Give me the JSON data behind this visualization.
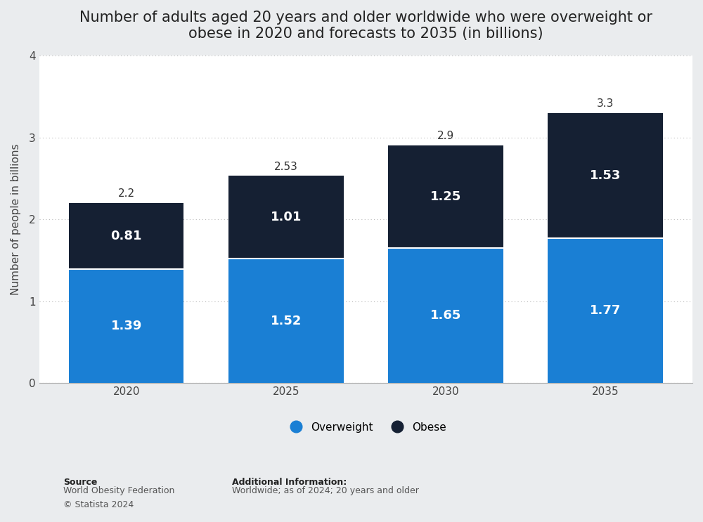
{
  "title": "Number of adults aged 20 years and older worldwide who were overweight or\nobese in 2020 and forecasts to 2035 (in billions)",
  "years": [
    "2020",
    "2025",
    "2030",
    "2035"
  ],
  "overweight": [
    1.39,
    1.52,
    1.65,
    1.77
  ],
  "obese": [
    0.81,
    1.01,
    1.25,
    1.53
  ],
  "totals": [
    2.2,
    2.53,
    2.9,
    3.3
  ],
  "overweight_color": "#1a7fd4",
  "obese_color": "#152033",
  "ylabel": "Number of people in billions",
  "ylim": [
    0,
    4
  ],
  "yticks": [
    0,
    1,
    2,
    3,
    4
  ],
  "outer_bg_color": "#eaecee",
  "plot_bg_color": "#ffffff",
  "bar_width": 0.72,
  "source_label": "Source",
  "source_body": "World Obesity Federation\n© Statista 2024",
  "additional_info_title": "Additional Information:",
  "additional_info": "Worldwide; as of 2024; 20 years and older",
  "legend_overweight": "Overweight",
  "legend_obese": "Obese",
  "title_fontsize": 15,
  "label_fontsize": 11,
  "tick_fontsize": 11,
  "bar_label_fontsize": 13,
  "total_label_fontsize": 11
}
